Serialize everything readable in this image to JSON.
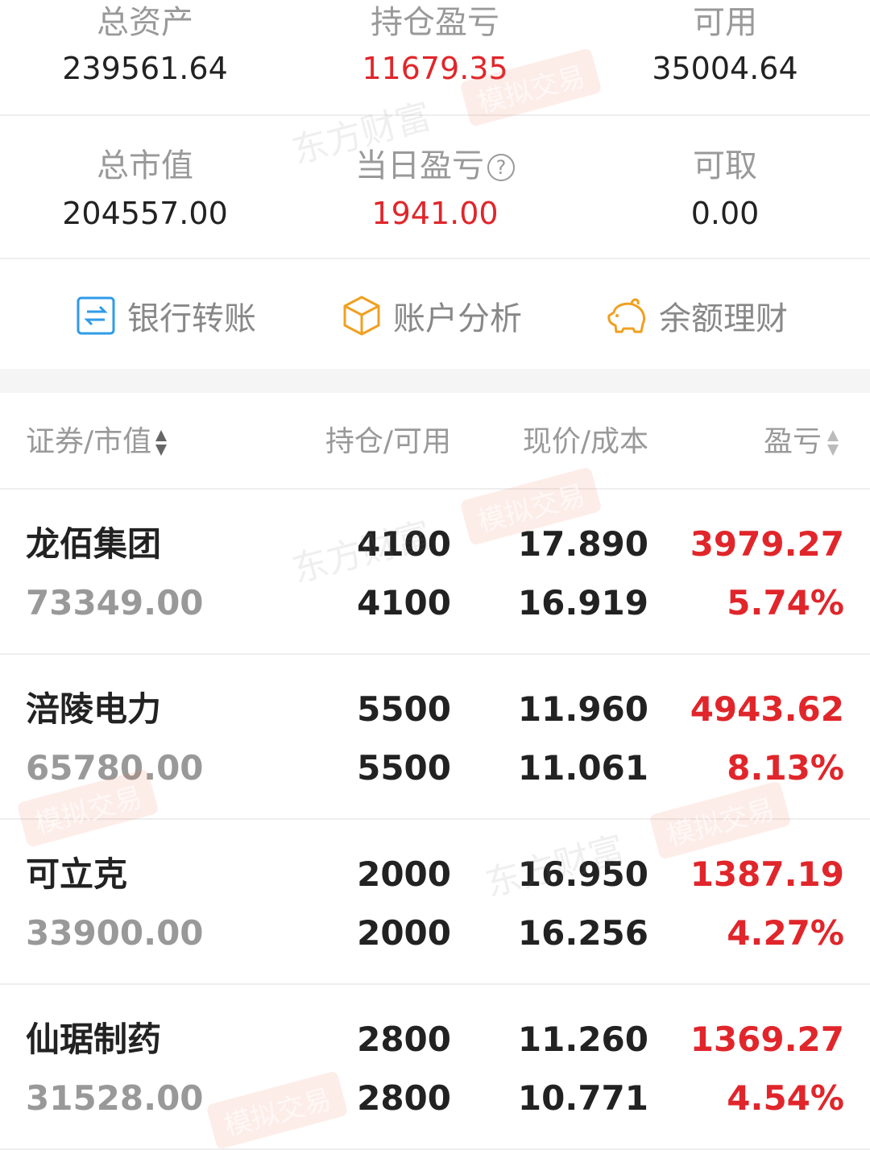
{
  "summary": [
    {
      "label": "总资产",
      "value": "239561.64",
      "red": false
    },
    {
      "label": "持仓盈亏",
      "value": "11679.35",
      "red": true
    },
    {
      "label": "可用",
      "value": "35004.64",
      "red": false
    },
    {
      "label": "总市值",
      "value": "204557.00",
      "red": false
    },
    {
      "label": "当日盈亏",
      "value": "1941.00",
      "red": true,
      "help_icon": "question-circle-icon"
    },
    {
      "label": "可取",
      "value": "0.00",
      "red": false
    }
  ],
  "actions": [
    {
      "label": "银行转账",
      "icon": "bank-transfer-icon",
      "color": "#2f9be8"
    },
    {
      "label": "账户分析",
      "icon": "cube-icon",
      "color": "#f0a020"
    },
    {
      "label": "余额理财",
      "icon": "piggy-bank-icon",
      "color": "#f0a020"
    }
  ],
  "table": {
    "headers": [
      "证券/市值",
      "持仓/可用",
      "现价/成本",
      "盈亏"
    ],
    "rows": [
      {
        "name": "龙佰集团",
        "market_value": "73349.00",
        "position": "4100",
        "available": "4100",
        "price": "17.890",
        "cost": "16.919",
        "pnl": "3979.27",
        "pnl_pct": "5.74%"
      },
      {
        "name": "涪陵电力",
        "market_value": "65780.00",
        "position": "5500",
        "available": "5500",
        "price": "11.960",
        "cost": "11.061",
        "pnl": "4943.62",
        "pnl_pct": "8.13%"
      },
      {
        "name": "可立克",
        "market_value": "33900.00",
        "position": "2000",
        "available": "2000",
        "price": "16.950",
        "cost": "16.256",
        "pnl": "1387.19",
        "pnl_pct": "4.27%"
      },
      {
        "name": "仙琚制药",
        "market_value": "31528.00",
        "position": "2800",
        "available": "2800",
        "price": "11.260",
        "cost": "10.771",
        "pnl": "1369.27",
        "pnl_pct": "4.54%"
      }
    ]
  },
  "watermark": {
    "brand": "东方财富",
    "mode": "模拟交易"
  },
  "colors": {
    "red": "#e0262b",
    "text": "#222222",
    "muted": "#999999"
  }
}
